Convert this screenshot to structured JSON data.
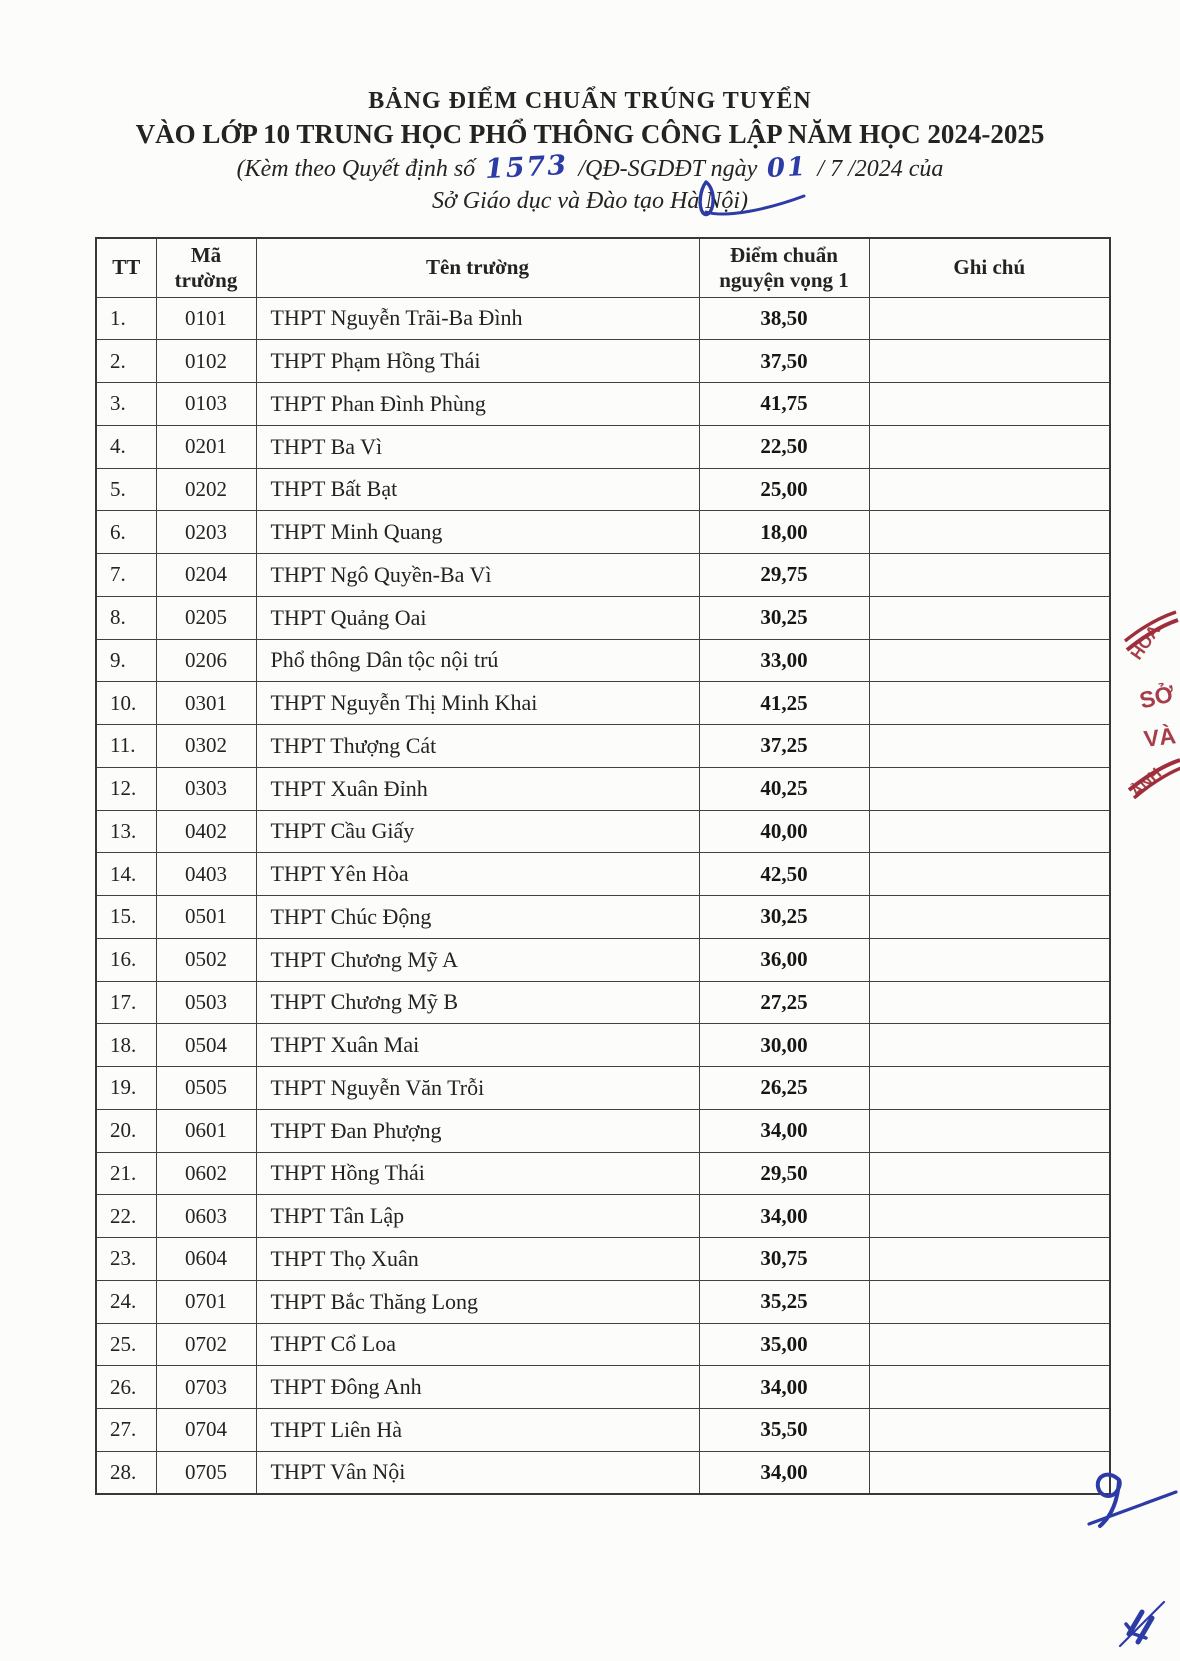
{
  "document": {
    "title_line1": "BẢNG ĐIỂM CHUẨN TRÚNG TUYỂN",
    "title_line2": "VÀO LỚP 10 TRUNG HỌC PHỔ THÔNG CÔNG LẬP NĂM HỌC 2024-2025",
    "subtitle": {
      "prefix": "(Kèm theo Quyết định số",
      "decision_number": "1573",
      "middle": "/QĐ-SGDĐT ngày",
      "day": "01",
      "suffix": "/ 7 /2024 của",
      "line2": "Sở Giáo dục và Đào tạo Hà Nội)"
    }
  },
  "table": {
    "headers": {
      "tt": "TT",
      "code": "Mã trường",
      "name": "Tên trường",
      "score": "Điểm chuẩn nguyện vọng 1",
      "note": "Ghi chú"
    },
    "rows": [
      {
        "tt": "1.",
        "code": "0101",
        "name": "THPT Nguyễn Trãi-Ba Đình",
        "score": "38,50",
        "note": ""
      },
      {
        "tt": "2.",
        "code": "0102",
        "name": "THPT Phạm Hồng Thái",
        "score": "37,50",
        "note": ""
      },
      {
        "tt": "3.",
        "code": "0103",
        "name": "THPT Phan Đình Phùng",
        "score": "41,75",
        "note": ""
      },
      {
        "tt": "4.",
        "code": "0201",
        "name": "THPT Ba Vì",
        "score": "22,50",
        "note": ""
      },
      {
        "tt": "5.",
        "code": "0202",
        "name": "THPT Bất Bạt",
        "score": "25,00",
        "note": ""
      },
      {
        "tt": "6.",
        "code": "0203",
        "name": "THPT Minh Quang",
        "score": "18,00",
        "note": ""
      },
      {
        "tt": "7.",
        "code": "0204",
        "name": "THPT Ngô Quyền-Ba Vì",
        "score": "29,75",
        "note": ""
      },
      {
        "tt": "8.",
        "code": "0205",
        "name": "THPT Quảng Oai",
        "score": "30,25",
        "note": ""
      },
      {
        "tt": "9.",
        "code": "0206",
        "name": "Phổ thông Dân tộc nội trú",
        "score": "33,00",
        "note": ""
      },
      {
        "tt": "10.",
        "code": "0301",
        "name": "THPT Nguyễn Thị Minh Khai",
        "score": "41,25",
        "note": ""
      },
      {
        "tt": "11.",
        "code": "0302",
        "name": "THPT Thượng Cát",
        "score": "37,25",
        "note": ""
      },
      {
        "tt": "12.",
        "code": "0303",
        "name": "THPT Xuân Đỉnh",
        "score": "40,25",
        "note": ""
      },
      {
        "tt": "13.",
        "code": "0402",
        "name": "THPT Cầu Giấy",
        "score": "40,00",
        "note": ""
      },
      {
        "tt": "14.",
        "code": "0403",
        "name": "THPT Yên Hòa",
        "score": "42,50",
        "note": ""
      },
      {
        "tt": "15.",
        "code": "0501",
        "name": "THPT Chúc Động",
        "score": "30,25",
        "note": ""
      },
      {
        "tt": "16.",
        "code": "0502",
        "name": "THPT Chương Mỹ A",
        "score": "36,00",
        "note": ""
      },
      {
        "tt": "17.",
        "code": "0503",
        "name": "THPT Chương Mỹ B",
        "score": "27,25",
        "note": ""
      },
      {
        "tt": "18.",
        "code": "0504",
        "name": "THPT Xuân Mai",
        "score": "30,00",
        "note": ""
      },
      {
        "tt": "19.",
        "code": "0505",
        "name": "THPT Nguyễn Văn Trỗi",
        "score": "26,25",
        "note": ""
      },
      {
        "tt": "20.",
        "code": "0601",
        "name": "THPT Đan Phượng",
        "score": "34,00",
        "note": ""
      },
      {
        "tt": "21.",
        "code": "0602",
        "name": "THPT Hồng Thái",
        "score": "29,50",
        "note": ""
      },
      {
        "tt": "22.",
        "code": "0603",
        "name": "THPT Tân Lập",
        "score": "34,00",
        "note": ""
      },
      {
        "tt": "23.",
        "code": "0604",
        "name": "THPT Thọ Xuân",
        "score": "30,75",
        "note": ""
      },
      {
        "tt": "24.",
        "code": "0701",
        "name": "THPT Bắc Thăng Long",
        "score": "35,25",
        "note": ""
      },
      {
        "tt": "25.",
        "code": "0702",
        "name": "THPT Cổ Loa",
        "score": "35,00",
        "note": ""
      },
      {
        "tt": "26.",
        "code": "0703",
        "name": "THPT Đông Anh",
        "score": "34,00",
        "note": ""
      },
      {
        "tt": "27.",
        "code": "0704",
        "name": "THPT Liên Hà",
        "score": "35,50",
        "note": ""
      },
      {
        "tt": "28.",
        "code": "0705",
        "name": "THPT Vân Nội",
        "score": "34,00",
        "note": ""
      }
    ]
  },
  "stamp": {
    "color": "#9f2e3a",
    "fragments": {
      "arc_top": "HOA",
      "line1": "SỞ",
      "line2": "VÀ",
      "arc_bottom": "ẢNH"
    }
  },
  "ink": {
    "color": "#2c3ba6"
  }
}
